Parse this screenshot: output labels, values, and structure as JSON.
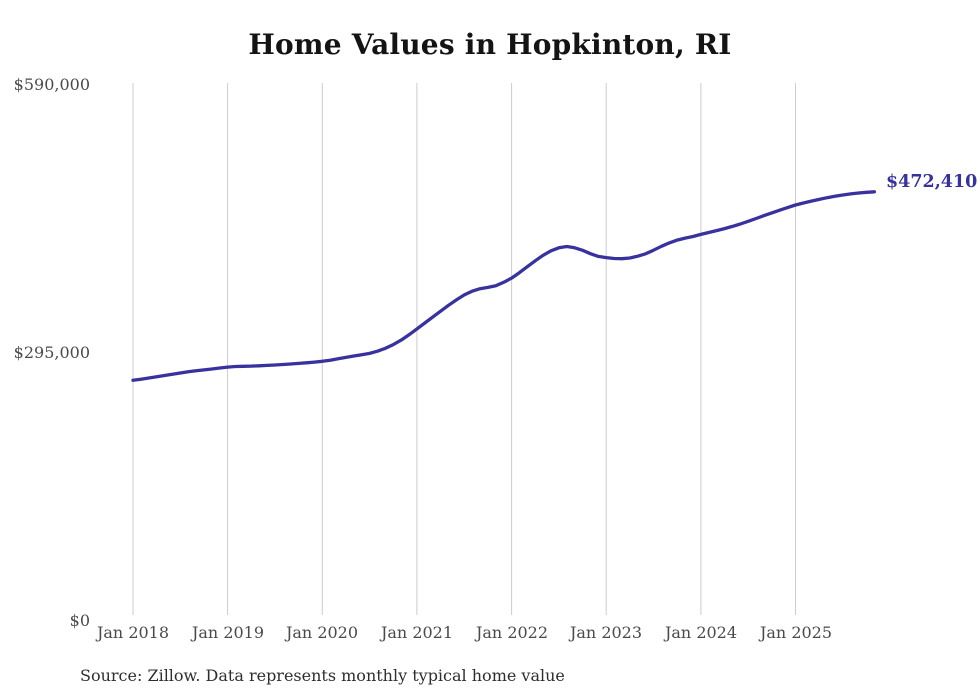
{
  "title": "Home Values in Hopkinton, RI",
  "source_note": "Source: Zillow. Data represents monthly typical home value",
  "colors": {
    "line": "#38329e",
    "value_label": "#38329e",
    "axis_text": "#4a4a4a",
    "grid": "#cccccc",
    "title_text": "#141414",
    "source_text": "#2e2e2e",
    "background": "#ffffff"
  },
  "chart_data": {
    "type": "line",
    "title": "Home Values in Hopkinton, RI",
    "xlabel": "",
    "ylabel": "",
    "ylim": [
      0,
      590000
    ],
    "grid": "vertical-yearly",
    "legend": "none",
    "last_value_label": "$472,410",
    "last_value": 472410,
    "y_ticks": [
      {
        "value": 590000,
        "label": "$590,000"
      },
      {
        "value": 295000,
        "label": "$295,000"
      },
      {
        "value": 0,
        "label": "$0"
      }
    ],
    "x_ticks": [
      {
        "label": "Jan 2018",
        "month_index": 0
      },
      {
        "label": "Jan 2019",
        "month_index": 12
      },
      {
        "label": "Jan 2020",
        "month_index": 24
      },
      {
        "label": "Jan 2021",
        "month_index": 36
      },
      {
        "label": "Jan 2022",
        "month_index": 48
      },
      {
        "label": "Jan 2023",
        "month_index": 60
      },
      {
        "label": "Jan 2024",
        "month_index": 72
      },
      {
        "label": "Jan 2025",
        "month_index": 84
      }
    ],
    "series": [
      {
        "name": "Monthly typical home value",
        "start_month": "2018-01",
        "end_month": "2025-11",
        "frequency": "monthly",
        "values": [
          265000,
          266200,
          267500,
          268800,
          270200,
          271600,
          273000,
          274300,
          275400,
          276400,
          277400,
          278500,
          279500,
          280100,
          280400,
          280600,
          280900,
          281300,
          281800,
          282300,
          282900,
          283500,
          284200,
          285000,
          285900,
          287100,
          288600,
          290200,
          291700,
          293100,
          294600,
          297000,
          300200,
          304200,
          309200,
          315000,
          321500,
          328000,
          334500,
          341000,
          347500,
          353500,
          359000,
          363000,
          365800,
          367200,
          369000,
          372800,
          377500,
          383500,
          390000,
          396500,
          402500,
          407500,
          410800,
          412200,
          410800,
          408000,
          404300,
          401300,
          400000,
          399000,
          398800,
          399600,
          401500,
          404200,
          408200,
          412400,
          416200,
          419300,
          421500,
          423200,
          425500,
          427600,
          429700,
          431900,
          434300,
          437000,
          440000,
          443100,
          446200,
          449200,
          452200,
          455100,
          457900,
          460100,
          462200,
          464100,
          465900,
          467500,
          468900,
          470100,
          471100,
          471900,
          472410
        ]
      }
    ]
  }
}
